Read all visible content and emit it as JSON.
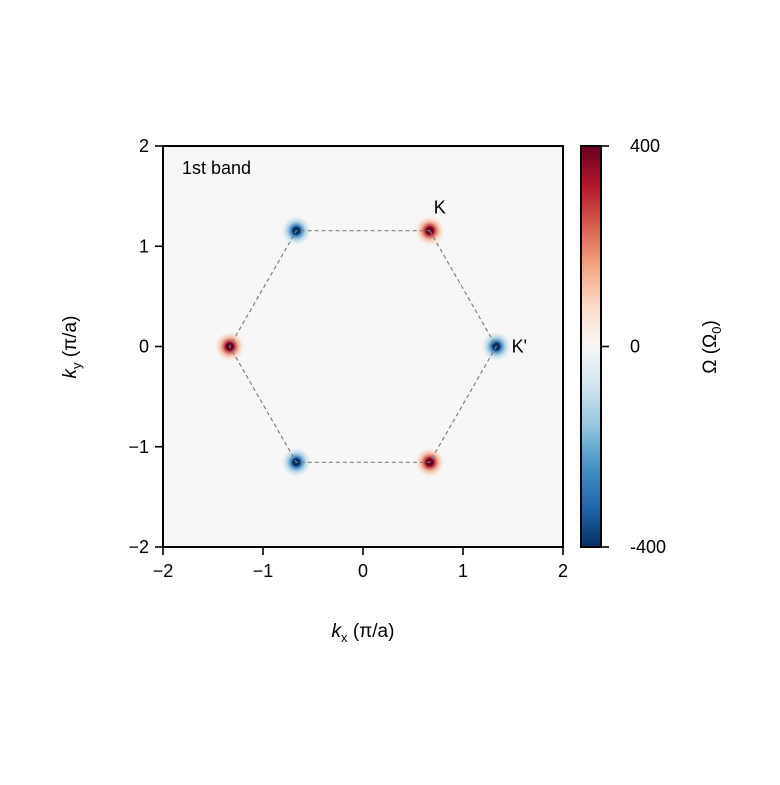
{
  "chart_data": {
    "type": "heatmap",
    "title": "",
    "annotation": "1st band",
    "xlabel": {
      "italic": "k",
      "sub": "x",
      "rest": " (π/a)"
    },
    "ylabel": {
      "italic": "k",
      "sub": "y",
      "rest": " (π/a)"
    },
    "xlim": [
      -2,
      2
    ],
    "ylim": [
      -2,
      2
    ],
    "xticks": [
      -2,
      -1,
      0,
      1,
      2
    ],
    "yticks": [
      -2,
      -1,
      0,
      1,
      2
    ],
    "xtick_labels": [
      "−2",
      "−1",
      "0",
      "1",
      "2"
    ],
    "ytick_labels": [
      "−2",
      "−1",
      "0",
      "1",
      "2"
    ],
    "background_value": 0,
    "brillouin_zone_vertices": [
      [
        0.667,
        1.155
      ],
      [
        1.333,
        0.0
      ],
      [
        0.667,
        -1.155
      ],
      [
        -0.667,
        -1.155
      ],
      [
        -1.333,
        0.0
      ],
      [
        -0.667,
        1.155
      ]
    ],
    "hotspots": [
      {
        "x": 0.667,
        "y": 1.155,
        "value": 400
      },
      {
        "x": 1.333,
        "y": 0.0,
        "value": -400
      },
      {
        "x": 0.667,
        "y": -1.155,
        "value": 400
      },
      {
        "x": -0.667,
        "y": -1.155,
        "value": -400
      },
      {
        "x": -1.333,
        "y": 0.0,
        "value": 400
      },
      {
        "x": -0.667,
        "y": 1.155,
        "value": -400
      }
    ],
    "point_labels": [
      {
        "text": "K",
        "x": 0.667,
        "y": 1.155
      },
      {
        "text": "K'",
        "x": 1.333,
        "y": 0.0
      }
    ],
    "colorbar": {
      "colormap": "RdBu_r",
      "min": -400,
      "max": 400,
      "ticks": [
        400,
        0,
        -400
      ],
      "tick_labels": [
        "400",
        "0",
        "-400"
      ],
      "label": {
        "main": "Ω (Ω",
        "sub": "0",
        "end": ")"
      }
    },
    "colors": {
      "negative": "#053061",
      "neutral": "#f7f7f7",
      "positive": "#67001f",
      "boundary_line": "#808080"
    }
  }
}
